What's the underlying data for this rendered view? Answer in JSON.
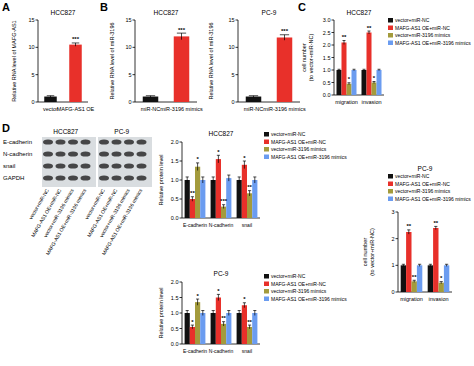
{
  "panels": [
    "A",
    "B",
    "C",
    "D"
  ],
  "chart_data": [
    {
      "type": "bar",
      "title": "HCC827",
      "y_label": "Relative RNA level of MAFG-AS1",
      "categories": [
        "vector",
        "MAFG-AS1 OE"
      ],
      "values": [
        1,
        10.5
      ],
      "errors": [
        0.15,
        0.3
      ],
      "significance": [
        null,
        "***"
      ],
      "colors": [
        "#111111",
        "#e8302a"
      ],
      "ylim": [
        0,
        15
      ],
      "yticks": [
        0,
        5,
        10,
        15
      ]
    },
    {
      "type": "bar",
      "title": "HCC827",
      "y_label": "Relative RNA level of miR-3196",
      "categories": [
        "miR-NC",
        "miR-3196 mimics"
      ],
      "values": [
        1,
        12
      ],
      "errors": [
        0.15,
        0.6
      ],
      "significance": [
        null,
        "***"
      ],
      "colors": [
        "#111111",
        "#e8302a"
      ],
      "ylim": [
        0,
        15
      ],
      "yticks": [
        0,
        5,
        10,
        15
      ]
    },
    {
      "type": "bar",
      "title": "PC-9",
      "y_label": "Relative RNA level of miR-3196",
      "categories": [
        "miR-NC",
        "miR-3196 mimics"
      ],
      "values": [
        1,
        11.8
      ],
      "errors": [
        0.15,
        0.5
      ],
      "significance": [
        null,
        "***"
      ],
      "colors": [
        "#111111",
        "#e8302a"
      ],
      "ylim": [
        0,
        15
      ],
      "yticks": [
        0,
        5,
        10,
        15
      ]
    },
    {
      "type": "bar",
      "title": "HCC827",
      "y_label": "cell number\n(to vector+miR-NC)",
      "categories": [
        "migration",
        "invasion"
      ],
      "series": [
        {
          "name": "vector+miR-NC",
          "color": "#111111",
          "values": [
            1,
            1
          ],
          "errors": [
            0.03,
            0.03
          ],
          "significance": [
            null,
            null
          ]
        },
        {
          "name": "MAFG-AS1 OE+miR-NC",
          "color": "#e8302a",
          "values": [
            2.1,
            2.5
          ],
          "errors": [
            0.08,
            0.06
          ],
          "significance": [
            "**",
            "**"
          ]
        },
        {
          "name": "vector+miR-3196 mimics",
          "color": "#a39b3c",
          "values": [
            0.45,
            0.5
          ],
          "errors": [
            0.04,
            0.04
          ],
          "significance": [
            "*",
            "*"
          ]
        },
        {
          "name": "MAFG-AS1 OE+miR-3196 mimics",
          "color": "#6b9cf0",
          "values": [
            1,
            1
          ],
          "errors": [
            0.03,
            0.03
          ],
          "significance": [
            null,
            null
          ]
        }
      ],
      "ylim": [
        0,
        3
      ],
      "yticks": [
        {
          "value": 0,
          "label": "0.0"
        },
        {
          "value": 0.5,
          "label": "0.5"
        },
        {
          "value": 1,
          "label": "1.0"
        },
        {
          "value": 1.5,
          "label": "1.5"
        },
        {
          "value": 2,
          "label": "2.0"
        },
        {
          "value": 2.5,
          "label": "2.5"
        },
        {
          "value": 3,
          "label": "3.0"
        }
      ],
      "legend": "right"
    },
    {
      "type": "bar",
      "title": "PC-9",
      "y_label": "cell number\n(to vector+miR-NC)",
      "categories": [
        "migration",
        "invasion"
      ],
      "series": [
        {
          "name": "vector+miR-NC",
          "color": "#111111",
          "values": [
            1,
            1
          ],
          "errors": [
            0.04,
            0.04
          ],
          "significance": [
            null,
            null
          ]
        },
        {
          "name": "MAFG-AS1 OE+miR-NC",
          "color": "#e8302a",
          "values": [
            2.25,
            2.4
          ],
          "errors": [
            0.08,
            0.06
          ],
          "significance": [
            "**",
            "**"
          ]
        },
        {
          "name": "vector+miR-3196 mimics",
          "color": "#a39b3c",
          "values": [
            0.4,
            0.35
          ],
          "errors": [
            0.04,
            0.04
          ],
          "significance": [
            "**",
            "*"
          ]
        },
        {
          "name": "MAFG-AS1 OE+miR-3196 mimics",
          "color": "#6b9cf0",
          "values": [
            1,
            1
          ],
          "errors": [
            0.04,
            0.04
          ],
          "significance": [
            null,
            null
          ]
        }
      ],
      "ylim": [
        0,
        3
      ],
      "yticks": [
        0,
        1,
        2,
        3
      ],
      "legend": "top"
    },
    {
      "type": "bar",
      "title": "HCC827",
      "y_label": "Relative protein level",
      "categories": [
        "E-cadherin",
        "N-cadherin",
        "snail"
      ],
      "series": [
        {
          "name": "vector+miR-NC",
          "color": "#111111",
          "values": [
            1,
            1,
            1
          ],
          "errors": [
            0.08,
            0.08,
            0.08
          ],
          "significance": [
            null,
            null,
            null
          ]
        },
        {
          "name": "MAFG-AS1 OE+miR-NC",
          "color": "#e8302a",
          "values": [
            0.5,
            1.55,
            1.4
          ],
          "errors": [
            0.06,
            0.1,
            0.1
          ],
          "significance": [
            "**",
            "*",
            "*"
          ]
        },
        {
          "name": "vector+miR-3196 mimics",
          "color": "#a39b3c",
          "values": [
            1.35,
            0.3,
            0.65
          ],
          "errors": [
            0.1,
            0.05,
            0.07
          ],
          "significance": [
            "*",
            "***",
            "**"
          ]
        },
        {
          "name": "MAFG-AS1 OE+miR-3196 mimics",
          "color": "#6b9cf0",
          "values": [
            1,
            1.05,
            1
          ],
          "errors": [
            0.08,
            0.08,
            0.08
          ],
          "significance": [
            null,
            null,
            null
          ]
        }
      ],
      "ylim": [
        0,
        2
      ],
      "yticks": [
        {
          "value": 0,
          "label": "0.0"
        },
        {
          "value": 0.5,
          "label": "0.5"
        },
        {
          "value": 1,
          "label": "1.0"
        },
        {
          "value": 1.5,
          "label": "1.5"
        },
        {
          "value": 2,
          "label": "2.0"
        }
      ],
      "legend": "right"
    },
    {
      "type": "bar",
      "title": "PC-9",
      "y_label": "Relative protein level",
      "categories": [
        "E-cadherin",
        "N-cadherin",
        "snail"
      ],
      "series": [
        {
          "name": "vector+miR-NC",
          "color": "#111111",
          "values": [
            1,
            1,
            1
          ],
          "errors": [
            0.08,
            0.08,
            0.08
          ],
          "significance": [
            null,
            null,
            null
          ]
        },
        {
          "name": "MAFG-AS1 OE+miR-NC",
          "color": "#e8302a",
          "values": [
            0.55,
            1.5,
            1.25
          ],
          "errors": [
            0.06,
            0.1,
            0.08
          ],
          "significance": [
            "*",
            "*",
            "*"
          ]
        },
        {
          "name": "vector+miR-3196 mimics",
          "color": "#a39b3c",
          "values": [
            1.35,
            0.65,
            0.55
          ],
          "errors": [
            0.1,
            0.07,
            0.06
          ],
          "significance": [
            "*",
            "**",
            "**"
          ]
        },
        {
          "name": "MAFG-AS1 OE+miR-3196 mimics",
          "color": "#6b9cf0",
          "values": [
            1,
            1,
            1
          ],
          "errors": [
            0.08,
            0.08,
            0.08
          ],
          "significance": [
            null,
            null,
            null
          ]
        }
      ],
      "ylim": [
        0,
        2
      ],
      "yticks": [
        {
          "value": 0,
          "label": "0.0"
        },
        {
          "value": 0.5,
          "label": "0.5"
        },
        {
          "value": 1,
          "label": "1.0"
        },
        {
          "value": 1.5,
          "label": "1.5"
        },
        {
          "value": 2,
          "label": "2.0"
        }
      ],
      "legend": "right"
    }
  ],
  "blot": {
    "cell_lines": [
      "HCC827",
      "PC-9"
    ],
    "proteins": [
      "E-cadherin",
      "N-cadherin",
      "snail",
      "GAPDH"
    ],
    "lanes": [
      "vector+miR-NC",
      "MAFG-AS1 OE+miR-NC",
      "vector+miR-3196 mimics",
      "MAFG-AS1 OE+miR-3196 mimics"
    ]
  }
}
